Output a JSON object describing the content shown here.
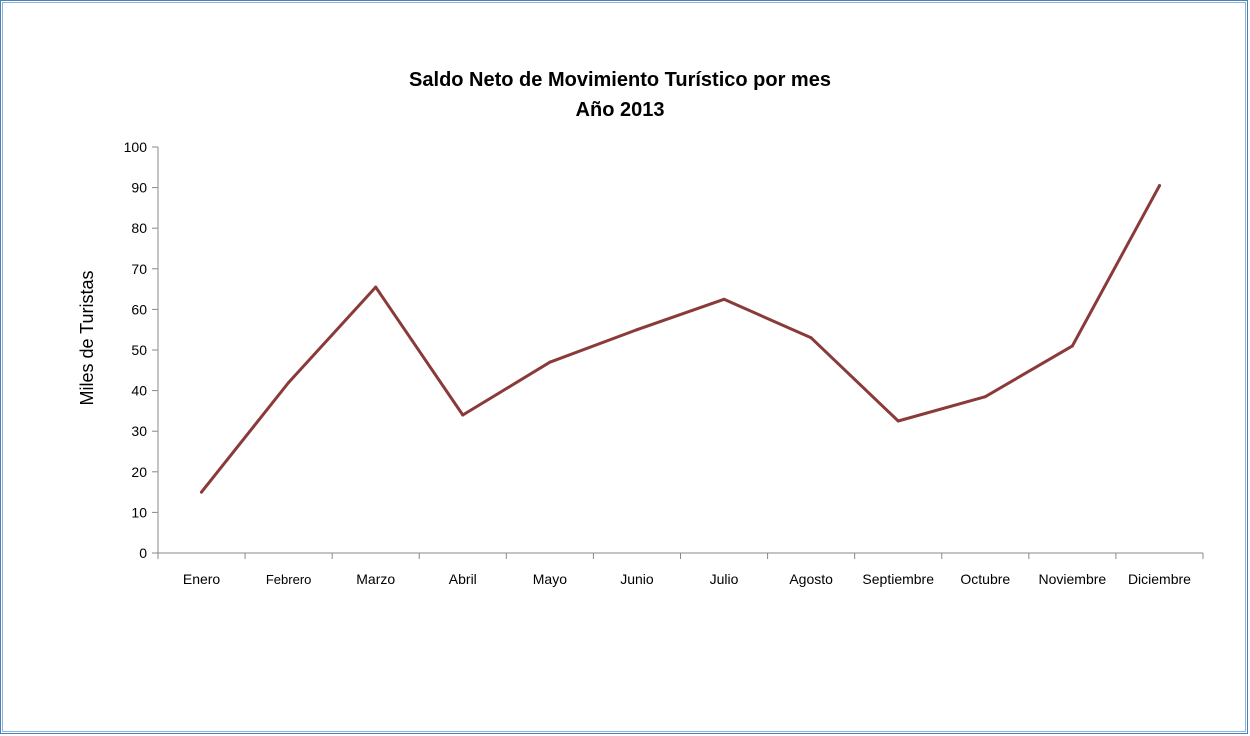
{
  "chart_data": {
    "type": "line",
    "title": "Saldo Neto de Movimiento Turístico por mes",
    "subtitle": "Año 2013",
    "xlabel": "",
    "ylabel": "Miles de Turistas",
    "ylim": [
      0,
      100
    ],
    "yticks": [
      "0",
      "10",
      "20",
      "30",
      "40",
      "50",
      "60",
      "70",
      "80",
      "90",
      "100"
    ],
    "grid": false,
    "categories": [
      "Enero",
      "Febrero",
      "Marzo",
      "Abril",
      "Mayo",
      "Junio",
      "Julio",
      "Agosto",
      "Septiembre",
      "Octubre",
      "Noviembre",
      "Diciembre"
    ],
    "series": [
      {
        "values": [
          15,
          42,
          65.5,
          34,
          47,
          55,
          62.5,
          53,
          32.5,
          38.5,
          51,
          90.5
        ],
        "color": "#8b3a3a"
      }
    ]
  }
}
